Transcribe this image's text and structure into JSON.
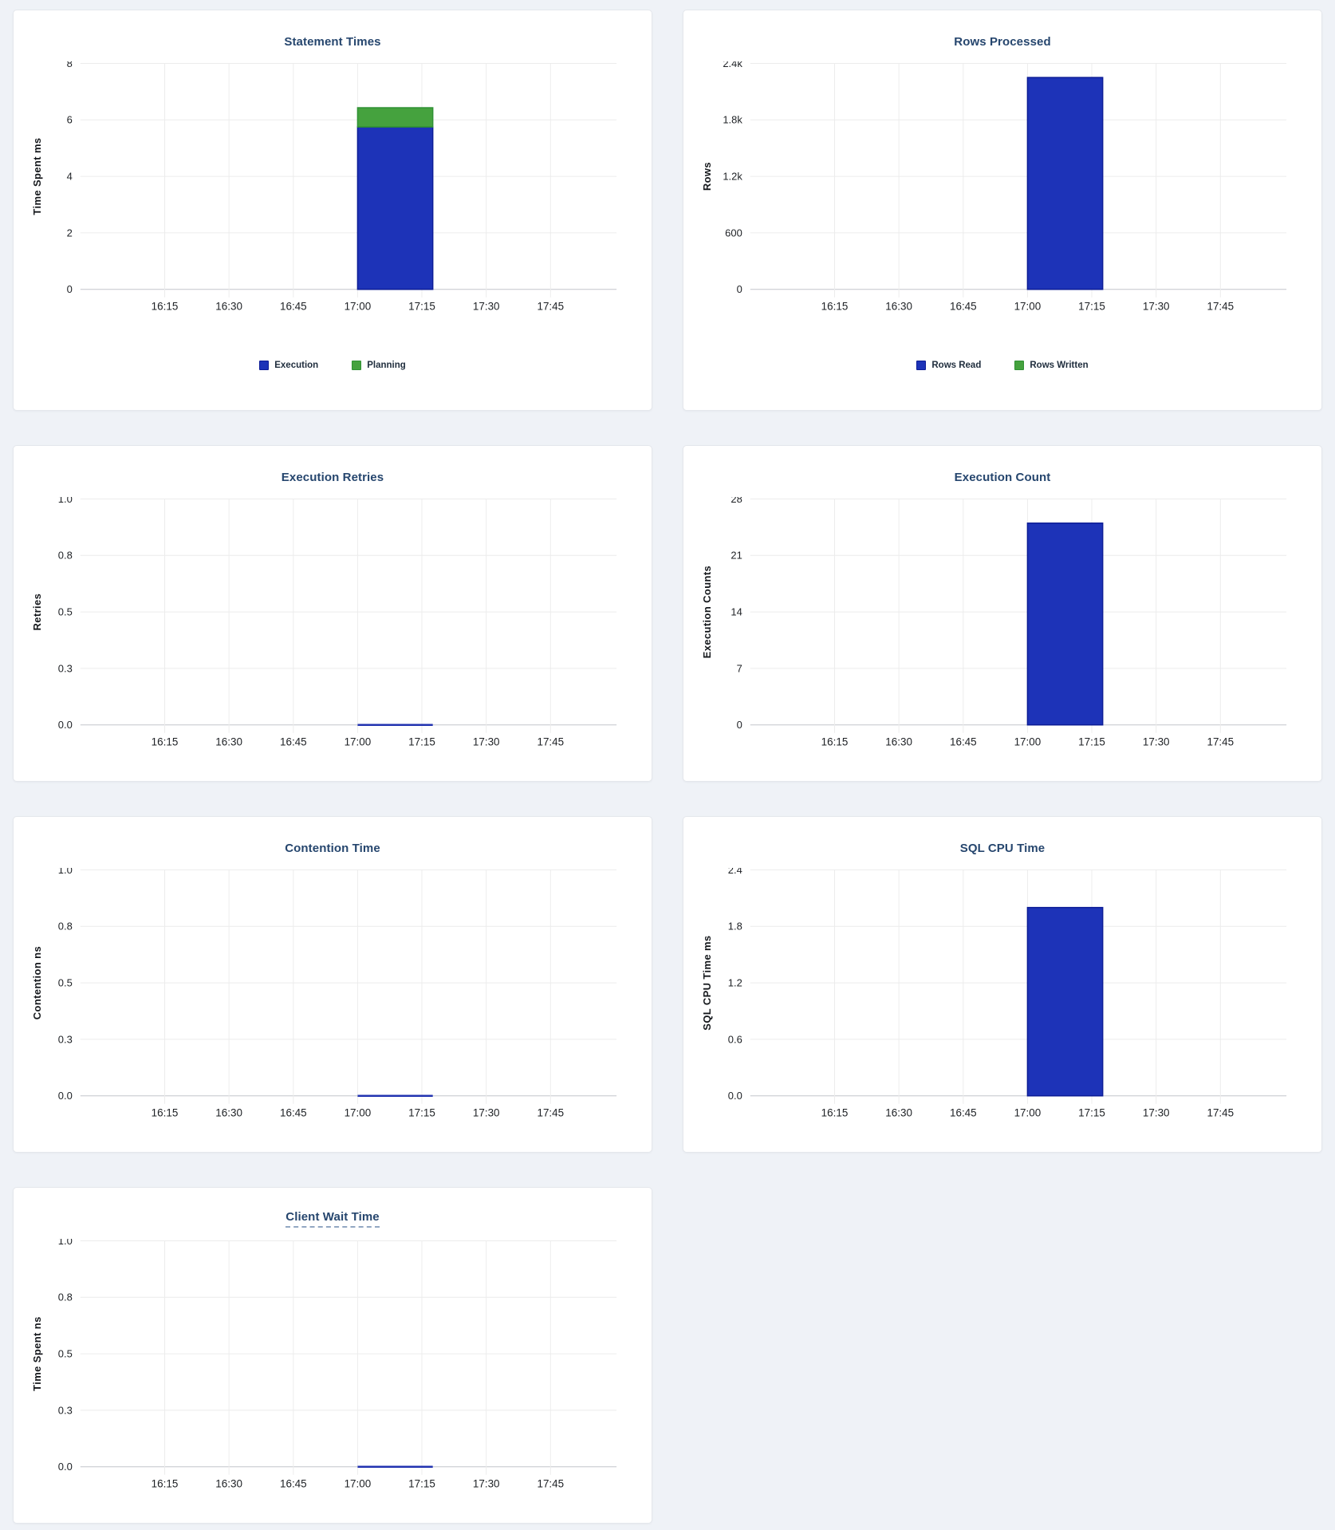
{
  "page": {
    "background": "#eff2f7",
    "card_background": "#ffffff",
    "title_color": "#26466e"
  },
  "colors": {
    "blue": "#1d33b8",
    "blue_border": "#0c1c96",
    "green": "#45a23e",
    "green_border": "#2f9133",
    "flat_line": "#2233b0",
    "gridline": "#ececec",
    "axis": "#c3c6cb"
  },
  "time_axis": {
    "ticks": [
      "16:15",
      "16:30",
      "16:45",
      "17:00",
      "17:15",
      "17:30",
      "17:45"
    ],
    "bar_bucket": {
      "start": "17:00",
      "end": "17:15"
    }
  },
  "chart_data": [
    {
      "id": "statement-times",
      "type": "bar",
      "title": "Statement Times",
      "ylabel": "Time Spent ms",
      "ytick_labels": [
        "0",
        "2",
        "4",
        "6",
        "8"
      ],
      "ytick_values": [
        0,
        2,
        4,
        6,
        8
      ],
      "ymax": 8,
      "x_ticks": [
        "16:15",
        "16:30",
        "16:45",
        "17:00",
        "17:15",
        "17:30",
        "17:45"
      ],
      "bar_bucket": {
        "start": "17:00",
        "end": "17:15"
      },
      "series": [
        {
          "name": "Execution",
          "color": "blue",
          "value": 5.75
        },
        {
          "name": "Planning",
          "color": "green",
          "value": 0.68
        }
      ],
      "legend": [
        {
          "label": "Execution",
          "color": "blue"
        },
        {
          "label": "Planning",
          "color": "green"
        }
      ]
    },
    {
      "id": "rows-processed",
      "type": "bar",
      "title": "Rows Processed",
      "ylabel": "Rows",
      "ytick_labels": [
        "0",
        "600",
        "1.2k",
        "1.8k",
        "2.4k"
      ],
      "ytick_values": [
        0,
        600,
        1200,
        1800,
        2400
      ],
      "ymax": 2400,
      "x_ticks": [
        "16:15",
        "16:30",
        "16:45",
        "17:00",
        "17:15",
        "17:30",
        "17:45"
      ],
      "bar_bucket": {
        "start": "17:00",
        "end": "17:15"
      },
      "series": [
        {
          "name": "Rows Read",
          "color": "blue",
          "value": 2250
        },
        {
          "name": "Rows Written",
          "color": "green",
          "value": 0
        }
      ],
      "legend": [
        {
          "label": "Rows Read",
          "color": "blue"
        },
        {
          "label": "Rows Written",
          "color": "green"
        }
      ]
    },
    {
      "id": "execution-retries",
      "type": "line",
      "title": "Execution Retries",
      "ylabel": "Retries",
      "ytick_labels": [
        "0.0",
        "0.3",
        "0.5",
        "0.8",
        "1.0"
      ],
      "ytick_values": [
        0,
        0.25,
        0.5,
        0.75,
        1.0
      ],
      "ymax": 1.0,
      "x_ticks": [
        "16:15",
        "16:30",
        "16:45",
        "17:00",
        "17:15",
        "17:30",
        "17:45"
      ],
      "bar_bucket": {
        "start": "17:00",
        "end": "17:15"
      },
      "series": [
        {
          "name": "Retries",
          "color": "blue",
          "value": 0
        }
      ],
      "legend": []
    },
    {
      "id": "execution-count",
      "type": "bar",
      "title": "Execution Count",
      "ylabel": "Execution Counts",
      "ytick_labels": [
        "0",
        "7",
        "14",
        "21",
        "28"
      ],
      "ytick_values": [
        0,
        7,
        14,
        21,
        28
      ],
      "ymax": 28,
      "x_ticks": [
        "16:15",
        "16:30",
        "16:45",
        "17:00",
        "17:15",
        "17:30",
        "17:45"
      ],
      "bar_bucket": {
        "start": "17:00",
        "end": "17:15"
      },
      "series": [
        {
          "name": "Execution Count",
          "color": "blue",
          "value": 25
        }
      ],
      "legend": []
    },
    {
      "id": "contention-time",
      "type": "line",
      "title": "Contention Time",
      "ylabel": "Contention ns",
      "ytick_labels": [
        "0.0",
        "0.3",
        "0.5",
        "0.8",
        "1.0"
      ],
      "ytick_values": [
        0,
        0.25,
        0.5,
        0.75,
        1.0
      ],
      "ymax": 1.0,
      "x_ticks": [
        "16:15",
        "16:30",
        "16:45",
        "17:00",
        "17:15",
        "17:30",
        "17:45"
      ],
      "bar_bucket": {
        "start": "17:00",
        "end": "17:15"
      },
      "series": [
        {
          "name": "Contention",
          "color": "blue",
          "value": 0
        }
      ],
      "legend": []
    },
    {
      "id": "sql-cpu-time",
      "type": "bar",
      "title": "SQL CPU Time",
      "ylabel": "SQL CPU Time ms",
      "ytick_labels": [
        "0.0",
        "0.6",
        "1.2",
        "1.8",
        "2.4"
      ],
      "ytick_values": [
        0,
        0.6,
        1.2,
        1.8,
        2.4
      ],
      "ymax": 2.4,
      "x_ticks": [
        "16:15",
        "16:30",
        "16:45",
        "17:00",
        "17:15",
        "17:30",
        "17:45"
      ],
      "bar_bucket": {
        "start": "17:00",
        "end": "17:15"
      },
      "series": [
        {
          "name": "SQL CPU Time",
          "color": "blue",
          "value": 2.0
        }
      ],
      "legend": []
    },
    {
      "id": "client-wait-time",
      "type": "line",
      "title": "Client Wait Time",
      "title_underlined": true,
      "ylabel": "Time Spent ns",
      "ytick_labels": [
        "0.0",
        "0.3",
        "0.5",
        "0.8",
        "1.0"
      ],
      "ytick_values": [
        0,
        0.25,
        0.5,
        0.75,
        1.0
      ],
      "ymax": 1.0,
      "x_ticks": [
        "16:15",
        "16:30",
        "16:45",
        "17:00",
        "17:15",
        "17:30",
        "17:45"
      ],
      "bar_bucket": {
        "start": "17:00",
        "end": "17:15"
      },
      "series": [
        {
          "name": "Client Wait",
          "color": "blue",
          "value": 0
        }
      ],
      "legend": []
    }
  ]
}
